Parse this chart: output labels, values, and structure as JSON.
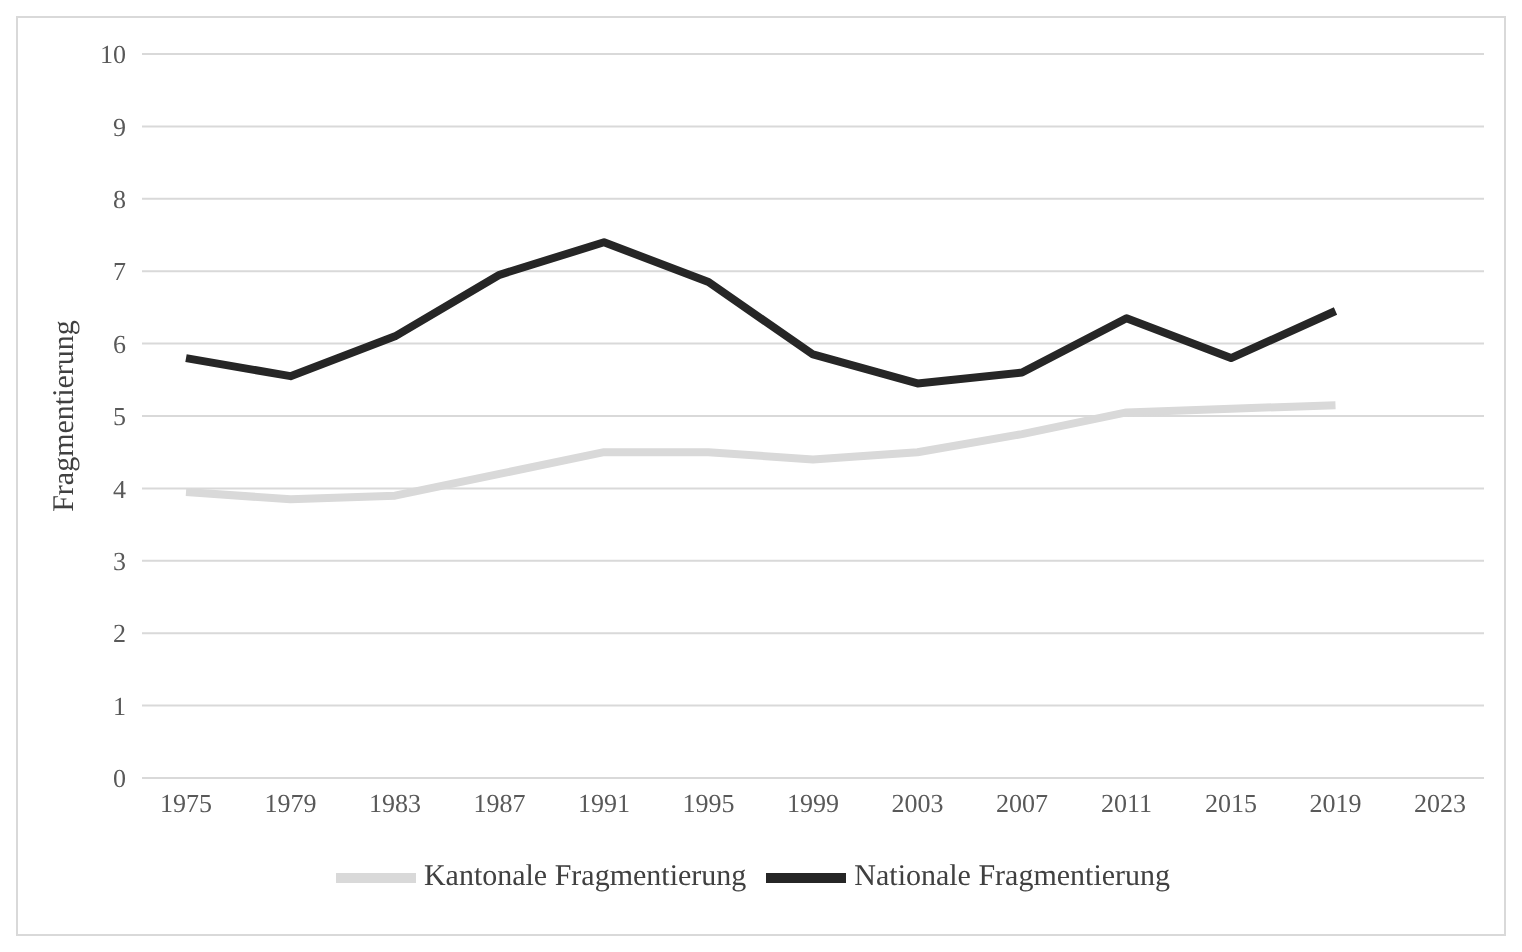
{
  "chart_data": {
    "type": "line",
    "ylabel": "Fragmentierung",
    "categories": [
      "1975",
      "1979",
      "1983",
      "1987",
      "1991",
      "1995",
      "1999",
      "2003",
      "2007",
      "2011",
      "2015",
      "2019",
      "2023"
    ],
    "series": [
      {
        "name": "Kantonale Fragmentierung",
        "color": "#d9d9d9",
        "values": [
          3.95,
          3.85,
          3.9,
          4.2,
          4.5,
          4.5,
          4.4,
          4.5,
          4.75,
          5.05,
          5.1,
          5.15,
          null
        ]
      },
      {
        "name": "Nationale Fragmentierung",
        "color": "#262626",
        "values": [
          5.8,
          5.55,
          6.1,
          6.95,
          7.4,
          6.85,
          5.85,
          5.45,
          5.6,
          6.35,
          5.8,
          6.45,
          null
        ]
      }
    ],
    "ylim": [
      0,
      10
    ],
    "yticks": [
      0,
      1,
      2,
      3,
      4,
      5,
      6,
      7,
      8,
      9,
      10
    ],
    "grid": "y",
    "legend": "bottom",
    "marker": "none",
    "line_style": "solid"
  }
}
